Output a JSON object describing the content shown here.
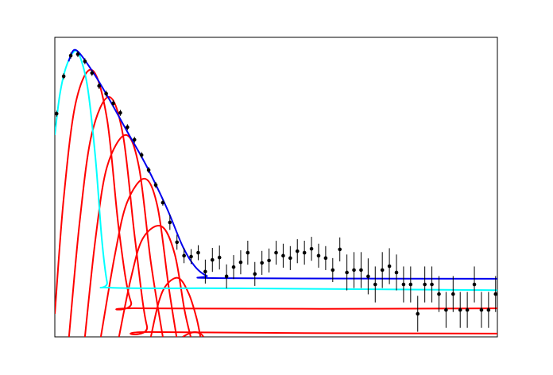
{
  "chart_data": {
    "type": "scatter",
    "xlim": [
      0,
      100
    ],
    "ylim": [
      0,
      100
    ],
    "series": [
      {
        "type": "line",
        "color": "#ff0000",
        "x": [
          0,
          2.0,
          4.7,
          8.4,
          11.8,
          14.5,
          17.2,
          20.8,
          100
        ],
        "values": [
          7.7,
          46.2,
          78.0,
          89.1,
          72.7,
          35.5,
          11.7,
          9.5,
          9.5
        ]
      },
      {
        "type": "line",
        "color": "#ff0000",
        "x": [
          3.2,
          5.6,
          8.3,
          12.2,
          15.4,
          18.1,
          20.8,
          23.5,
          100
        ],
        "values": [
          0,
          38.2,
          67.4,
          80.1,
          67.4,
          32.9,
          3.7,
          1.6,
          1.1
        ]
      },
      {
        "type": "line",
        "color": "#ff0000",
        "x": [
          6.8,
          9.2,
          11.8,
          16.0,
          19.0,
          21.7,
          24.4
        ],
        "values": [
          0,
          32.9,
          56.8,
          67.4,
          56.8,
          24.9,
          0
        ]
      },
      {
        "type": "line",
        "color": "#ff0000",
        "x": [
          10.4,
          13.6,
          16.3,
          20.3,
          23.2,
          25.7,
          27.5
        ],
        "values": [
          0,
          27.6,
          44.8,
          52.8,
          43.5,
          17.0,
          0
        ]
      },
      {
        "type": "line",
        "color": "#ff0000",
        "x": [
          14.5,
          17.2,
          19.9,
          24.1,
          27.1,
          29.3,
          30.7
        ],
        "values": [
          0,
          19.6,
          32.9,
          36.9,
          27.6,
          9.0,
          0
        ]
      },
      {
        "type": "line",
        "color": "#ff0000",
        "x": [
          21.7,
          23.5,
          25.3,
          28.0,
          30.3,
          32.0,
          32.9
        ],
        "values": [
          0,
          11.7,
          17.5,
          19.6,
          14.3,
          6.4,
          0
        ]
      },
      {
        "type": "line",
        "color": "#ff0000",
        "x": [
          28.9,
          30.3,
          31.6,
          32.9,
          33.6
        ],
        "values": [
          0,
          1.1,
          1.6,
          1.1,
          0
        ]
      },
      {
        "type": "line",
        "color": "#00ffff",
        "x": [
          0,
          1.1,
          2.5,
          4.3,
          5.6,
          7.4,
          9.2,
          10.6,
          11.8,
          12.7,
          41.5,
          100
        ],
        "values": [
          67.4,
          80.6,
          89.9,
          95.2,
          93.9,
          83.3,
          59.4,
          32.9,
          18.3,
          16.4,
          16.2,
          15.6
        ]
      },
      {
        "type": "line",
        "color": "#0000ee",
        "x": [
          3.1,
          4.7,
          8.3,
          12.0,
          16.3,
          20.8,
          25.3,
          28.9,
          31.6,
          34.3,
          37.9,
          100
        ],
        "values": [
          92.0,
          95.8,
          89.1,
          80.1,
          68.7,
          56.8,
          43.0,
          30.2,
          23.6,
          20.4,
          19.6,
          19.4
        ]
      },
      {
        "type": "errorbar",
        "color": "#000000",
        "x": [
          0.4,
          2,
          3.6,
          5.2,
          6.8,
          8.4,
          10,
          11.6,
          13.2,
          14.8,
          16.4,
          18,
          19.6,
          21.2,
          22.8,
          24.4,
          26,
          27.6,
          29.2,
          30.8,
          32.4,
          34,
          35.6,
          37.2,
          38.8,
          40.4,
          42,
          43.6,
          45.2,
          46.8,
          48.4,
          50,
          51.6,
          53.2,
          54.8,
          56.4,
          58,
          59.6,
          61.2,
          62.8,
          64.4,
          66,
          67.6,
          69.2,
          70.8,
          72.4,
          74,
          75.6,
          77.2,
          78.8,
          80.4,
          82,
          83.6,
          85.2,
          86.8,
          88.4,
          90,
          91.6,
          93.2,
          94.8,
          96.4,
          98,
          99.6
        ],
        "values": [
          74.5,
          87.0,
          93.9,
          94.4,
          92.0,
          88.1,
          83.8,
          81.2,
          78.0,
          74.8,
          70.0,
          65.8,
          60.7,
          55.7,
          50.7,
          44.8,
          38.2,
          31.6,
          27.1,
          26.8,
          28.1,
          21.8,
          25.7,
          26.5,
          20.2,
          23.3,
          24.9,
          28.1,
          21.0,
          24.7,
          25.5,
          28.1,
          27.1,
          26.3,
          28.6,
          28.1,
          29.4,
          27.1,
          26.3,
          22.3,
          29.2,
          21.5,
          22.3,
          22.3,
          20.2,
          17.5,
          22.3,
          23.6,
          21.5,
          17.5,
          17.5,
          7.7,
          17.5,
          17.5,
          14.3,
          9.0,
          14.3,
          9.0,
          9.0,
          17.5,
          9.0,
          9.0,
          14.3
        ],
        "errors": [
          1,
          1,
          1,
          1,
          1,
          1,
          1,
          1,
          1,
          1,
          1,
          1,
          1,
          1,
          1,
          1,
          2.5,
          2.5,
          2.5,
          2.5,
          2.5,
          4,
          4,
          4,
          4,
          4,
          4,
          4,
          4,
          4,
          4,
          4,
          4,
          4,
          4,
          4,
          4,
          4,
          4,
          4,
          4,
          6,
          6,
          6,
          6,
          6,
          6,
          6,
          6,
          6,
          6,
          6,
          6,
          6,
          6,
          6,
          6,
          6,
          6,
          6,
          6,
          6,
          6
        ]
      }
    ]
  }
}
